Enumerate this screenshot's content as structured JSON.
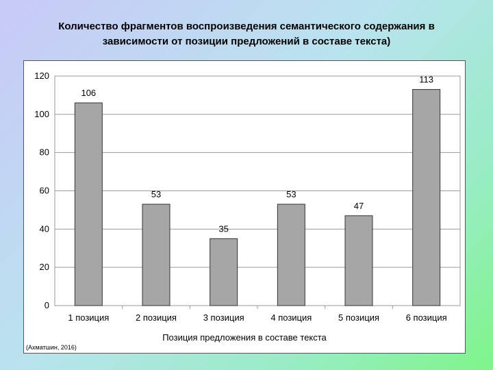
{
  "slide": {
    "title_line1": "Количество фрагментов воспроизведения семантического содержания в",
    "title_line2": "зависимости от позиции предложений в составе текста)"
  },
  "chart_data": {
    "type": "bar",
    "categories": [
      "1 позиция",
      "2 позиция",
      "3 позиция",
      "4 позиция",
      "5 позиция",
      "6 позиция"
    ],
    "values": [
      106,
      53,
      35,
      53,
      47,
      113
    ],
    "data_labels": [
      "106",
      "53",
      "35",
      "53",
      "47",
      "113"
    ],
    "title": "",
    "xlabel": "Позиция предложения в составе текста",
    "ylabel": "",
    "ylim": [
      0,
      120
    ],
    "yticks": [
      "0",
      "20",
      "40",
      "60",
      "80",
      "100",
      "120"
    ],
    "grid": true,
    "legend": "none",
    "bar_color": "#a6a6a6"
  },
  "source": "(Ахматшин, 2016)"
}
